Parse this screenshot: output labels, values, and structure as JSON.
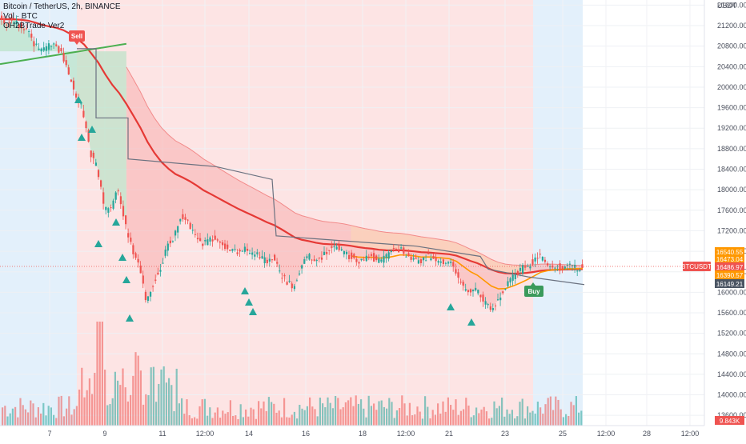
{
  "header": {
    "symbol_line": "Bitcoin / TetherUS, 2h, BINANCE",
    "volume_line": "Vol · BTC",
    "indicator_line": "OH2BTrade Ver2"
  },
  "colors": {
    "up": "#26a69a",
    "down": "#ef5350",
    "sell_zone": "#fde4e4",
    "buy_zone": "#e3f0fb",
    "cloud_red": "#f8b4b4",
    "cloud_orange": "#fcd5b5",
    "slow_ma": "#e53935",
    "fast_ma": "#ff9800",
    "green_ma": "#4caf50",
    "step_line": "#6b7280",
    "signal_arrow": "#26a69a"
  },
  "chart_data": {
    "type": "candlestick",
    "title": "Bitcoin / TetherUS, 2h, BINANCE",
    "ylabel": "USDT",
    "ylim": [
      13400,
      21700
    ],
    "y_ticks": [
      21600,
      21200,
      20800,
      20400,
      20000,
      19600,
      19200,
      18800,
      18400,
      18000,
      17600,
      17200,
      16800,
      16400,
      16000,
      15600,
      15200,
      14800,
      14400,
      14000,
      13600
    ],
    "x_ticks": [
      "7",
      "9",
      "11",
      "12:00",
      "14",
      "16",
      "18",
      "12:00",
      "21",
      "23",
      "25",
      "12:00",
      "28",
      "12:00"
    ],
    "signals": [
      {
        "type": "Sell",
        "label": "Sell"
      },
      {
        "type": "Buy",
        "label": "Buy"
      }
    ],
    "price_labels": [
      {
        "id": "cloud_top",
        "value": "16540.55",
        "color": "#ff9800"
      },
      {
        "id": "fast_ma",
        "value": "16473.04",
        "color": "#ff9800"
      },
      {
        "id": "last_price",
        "value": "16486.97",
        "color": "#ef5350"
      },
      {
        "id": "slow_ma",
        "value": "16390.57",
        "color": "#ff9800"
      },
      {
        "id": "step_line",
        "value": "16149.21",
        "color": "#4b5563"
      }
    ],
    "symbol_tag": "BTCUSDT",
    "volume_label": "9.843K",
    "close_path": [
      [
        0,
        21330
      ],
      [
        4,
        21250
      ],
      [
        8,
        21320
      ],
      [
        11,
        21200
      ],
      [
        13,
        21100
      ],
      [
        14,
        20850
      ],
      [
        15,
        20700
      ],
      [
        16,
        20820
      ],
      [
        18,
        20860
      ],
      [
        19,
        20600
      ],
      [
        20,
        20200
      ],
      [
        21,
        19850
      ],
      [
        22,
        19500
      ],
      [
        23,
        18700
      ],
      [
        24,
        18400
      ],
      [
        25,
        17600
      ],
      [
        26,
        17700
      ],
      [
        27,
        18000
      ],
      [
        28,
        17300
      ],
      [
        29,
        16800
      ],
      [
        30,
        16500
      ],
      [
        31,
        15800
      ],
      [
        32,
        16200
      ],
      [
        33,
        16500
      ],
      [
        34,
        16900
      ],
      [
        35,
        17100
      ],
      [
        36,
        17500
      ],
      [
        37,
        17350
      ],
      [
        38,
        17100
      ],
      [
        39,
        16900
      ],
      [
        40,
        17100
      ],
      [
        41,
        17000
      ],
      [
        42,
        16900
      ],
      [
        43,
        16850
      ],
      [
        44,
        16800
      ],
      [
        45,
        16820
      ],
      [
        46,
        16780
      ],
      [
        47,
        16700
      ],
      [
        48,
        16600
      ],
      [
        49,
        16700
      ],
      [
        50,
        16350
      ],
      [
        51,
        16200
      ],
      [
        52,
        16100
      ],
      [
        53,
        16500
      ],
      [
        54,
        16700
      ],
      [
        55,
        16600
      ],
      [
        56,
        16700
      ],
      [
        57,
        16850
      ],
      [
        58,
        16900
      ],
      [
        59,
        16800
      ],
      [
        60,
        16700
      ],
      [
        61,
        16600
      ],
      [
        62,
        16650
      ],
      [
        63,
        16700
      ],
      [
        64,
        16600
      ],
      [
        65,
        16700
      ],
      [
        66,
        16800
      ],
      [
        67,
        16850
      ],
      [
        68,
        16700
      ],
      [
        69,
        16650
      ],
      [
        70,
        16600
      ],
      [
        71,
        16700
      ],
      [
        72,
        16650
      ],
      [
        73,
        16620
      ],
      [
        74,
        16600
      ],
      [
        75,
        16400
      ],
      [
        76,
        16100
      ],
      [
        77,
        16000
      ],
      [
        78,
        16050
      ],
      [
        79,
        15800
      ],
      [
        80,
        15700
      ],
      [
        81,
        15850
      ],
      [
        82,
        16100
      ],
      [
        83,
        16300
      ],
      [
        84,
        16400
      ],
      [
        85,
        16500
      ],
      [
        86,
        16600
      ],
      [
        87,
        16700
      ],
      [
        88,
        16550
      ],
      [
        89,
        16520
      ],
      [
        90,
        16480
      ],
      [
        91,
        16500
      ],
      [
        92,
        16470
      ],
      [
        93,
        16490
      ]
    ]
  }
}
